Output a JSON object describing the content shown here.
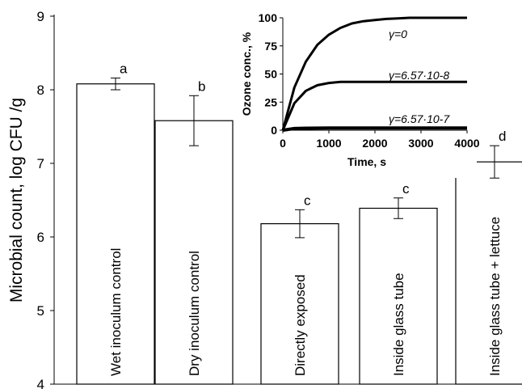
{
  "chart_data": [
    {
      "type": "bar",
      "categories": [
        "Wet inoculum control",
        "Dry inoculum control",
        "Directly exposed",
        "Inside glass tube",
        "Inside glass tube + lettuce"
      ],
      "values": [
        8.08,
        7.58,
        6.18,
        6.39,
        7.02
      ],
      "errors": [
        0.08,
        0.34,
        0.19,
        0.14,
        0.22
      ],
      "significance_letters": [
        "a",
        "b",
        "c",
        "c",
        "d"
      ],
      "ylabel": "Microbial count, log CFU /g",
      "ylim": [
        4,
        9
      ],
      "yticks": [
        "4",
        "5",
        "6",
        "7",
        "8",
        "9"
      ],
      "bar_fill": "#ffffff",
      "bar_stroke": "#000000"
    },
    {
      "type": "line",
      "xlabel": "Time,  s",
      "ylabel": "Ozone conc., %",
      "xlim": [
        0,
        4000
      ],
      "ylim": [
        0,
        100
      ],
      "xticks": [
        "0",
        "1000",
        "2000",
        "3000",
        "4000"
      ],
      "yticks": [
        "0",
        "25",
        "50",
        "75",
        "100"
      ],
      "series": [
        {
          "name": "γ=0",
          "x": [
            0,
            250,
            500,
            750,
            1000,
            1250,
            1500,
            1750,
            2000,
            2250,
            2500,
            2750,
            3000,
            3250,
            3500,
            3750,
            4000
          ],
          "y": [
            0,
            38,
            61,
            76,
            85,
            91,
            95,
            97,
            98,
            99,
            99.5,
            100,
            100,
            100,
            100,
            100,
            100
          ]
        },
        {
          "name": "γ=6.57·10-8",
          "x": [
            0,
            250,
            500,
            750,
            1000,
            1250,
            1500,
            1750,
            2000,
            2500,
            3000,
            3500,
            4000
          ],
          "y": [
            0,
            24,
            35,
            40,
            42,
            43,
            43,
            43,
            43,
            43,
            43,
            43,
            43
          ]
        },
        {
          "name": "γ=6.57·10-7",
          "x": [
            0,
            250,
            500,
            1000,
            1500,
            2000,
            3000,
            4000
          ],
          "y": [
            0,
            1.5,
            1.8,
            2,
            2,
            2,
            2,
            2
          ]
        }
      ]
    }
  ]
}
